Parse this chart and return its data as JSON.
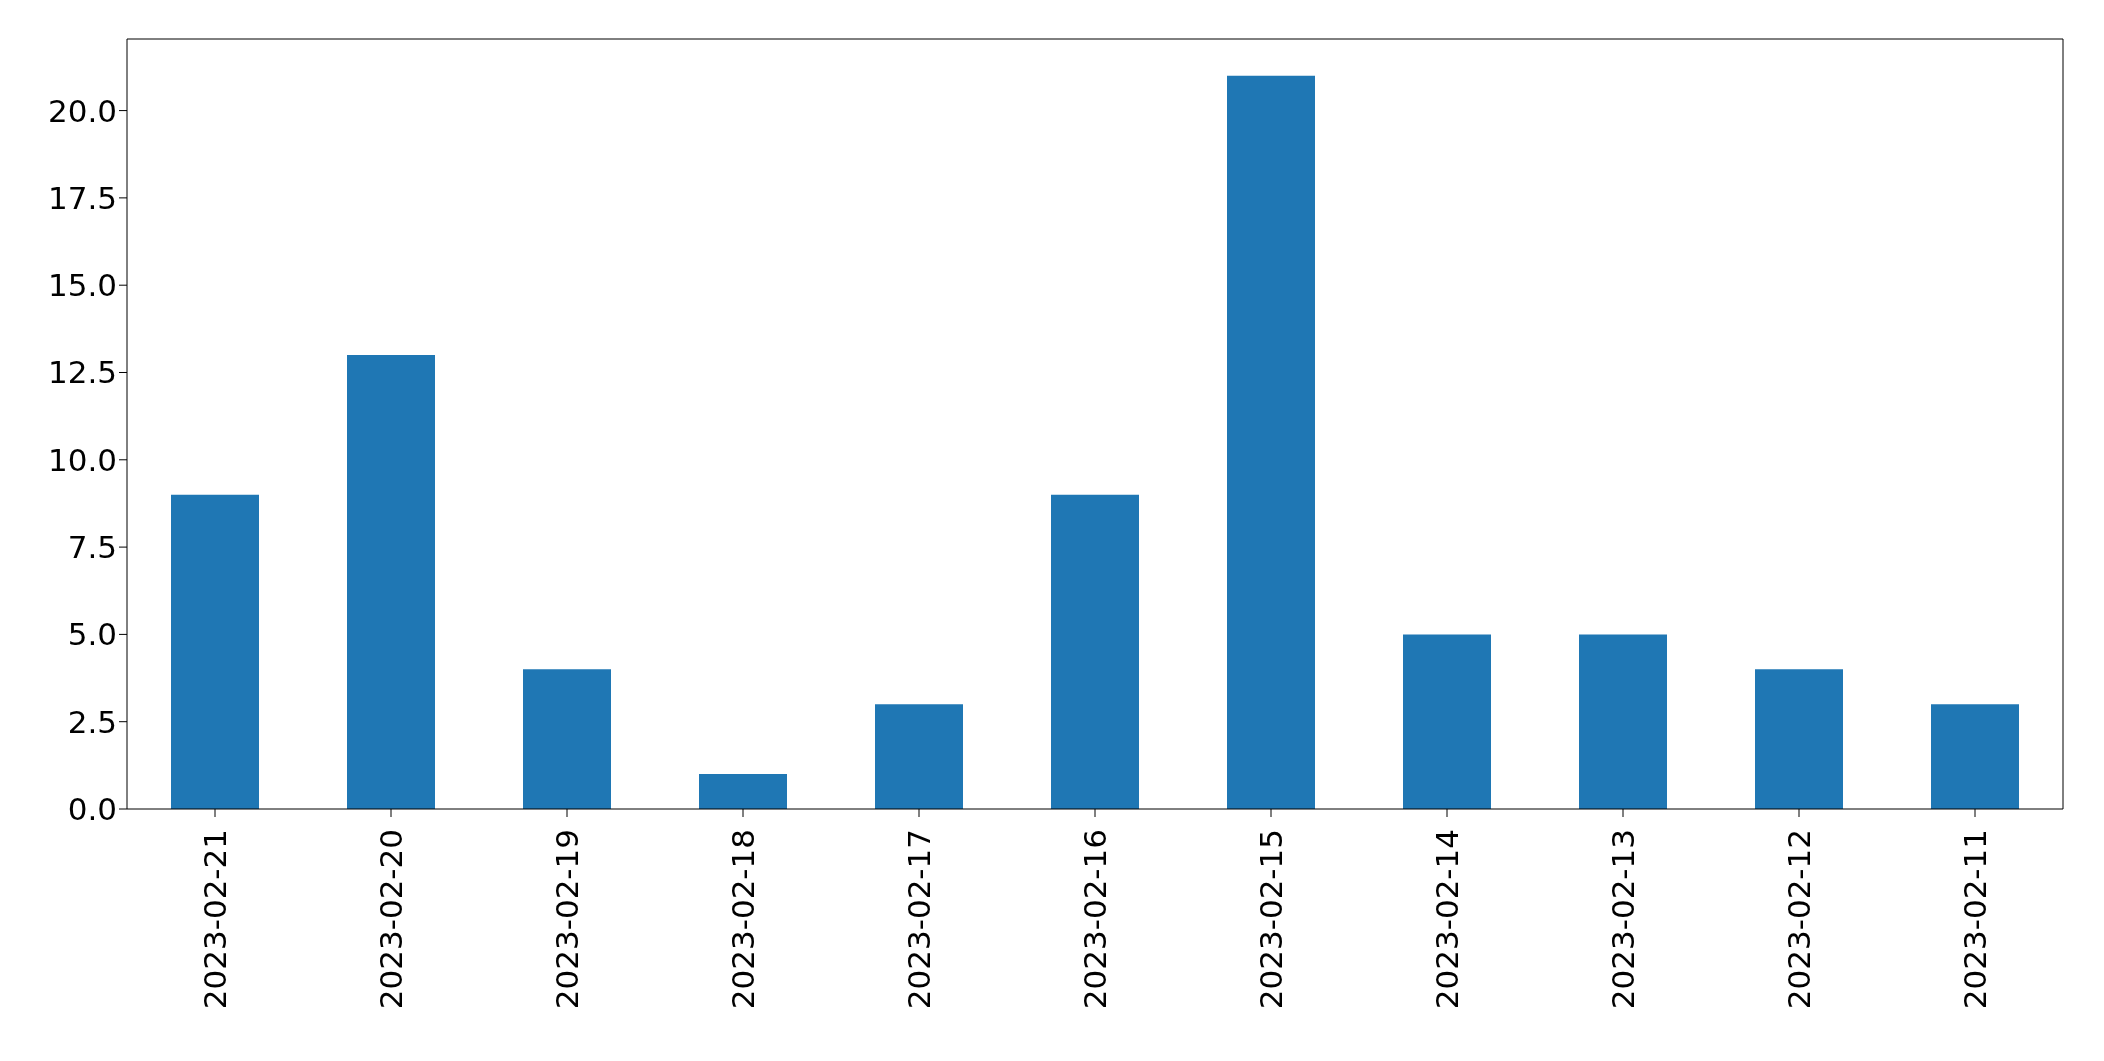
{
  "chart_data": {
    "type": "bar",
    "categories": [
      "2023-02-21",
      "2023-02-20",
      "2023-02-19",
      "2023-02-18",
      "2023-02-17",
      "2023-02-16",
      "2023-02-15",
      "2023-02-14",
      "2023-02-13",
      "2023-02-12",
      "2023-02-11"
    ],
    "values": [
      9,
      13,
      4,
      1,
      3,
      9,
      21,
      5,
      5,
      4,
      3
    ],
    "color": "#1f77b4",
    "ylim": [
      0,
      22.05
    ],
    "yticks": [
      {
        "value": 0,
        "label": "0.0"
      },
      {
        "value": 2.5,
        "label": "2.5"
      },
      {
        "value": 5,
        "label": "5.0"
      },
      {
        "value": 7.5,
        "label": "7.5"
      },
      {
        "value": 10,
        "label": "10.0"
      },
      {
        "value": 12.5,
        "label": "12.5"
      },
      {
        "value": 15,
        "label": "15.0"
      },
      {
        "value": 17.5,
        "label": "17.5"
      },
      {
        "value": 20,
        "label": "20.0"
      }
    ],
    "grid": false
  }
}
